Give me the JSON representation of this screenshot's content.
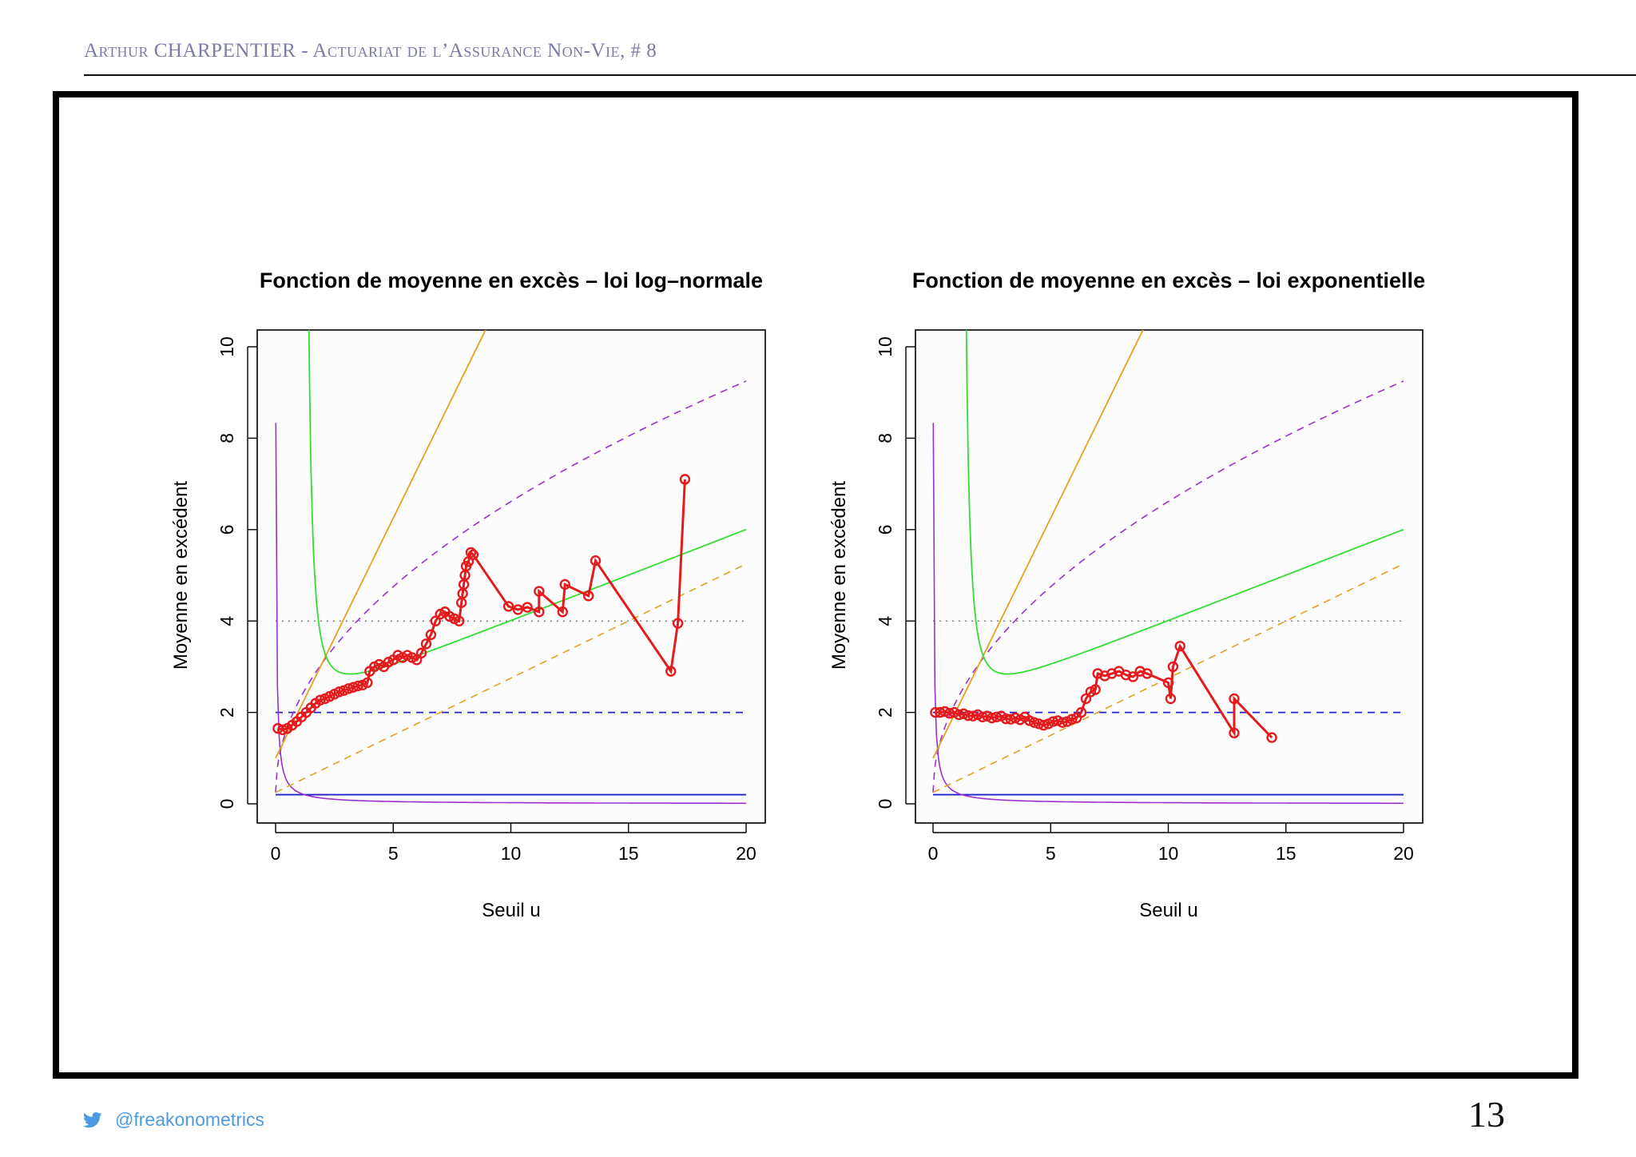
{
  "header": {
    "title": "Arthur CHARPENTIER - Actuariat de l’Assurance Non-Vie, # 8"
  },
  "footer": {
    "twitter_handle": "@freakonometrics",
    "page_number": "13"
  },
  "colors": {
    "series_red": "#e41a1c",
    "green": "#33dd33",
    "orange": "#e6a020",
    "purple": "#9b30d0",
    "blue": "#2020cc",
    "gray_dotted": "#888888"
  },
  "chart_data": [
    {
      "type": "line",
      "title": "Fonction de moyenne en excès – loi log–normale",
      "xlabel": "Seuil u",
      "ylabel": "Moyenne en excédent",
      "xlim": [
        0,
        20
      ],
      "ylim": [
        0,
        10
      ],
      "xticks": [
        "0",
        "5",
        "10",
        "15",
        "20"
      ],
      "yticks": [
        "0",
        "2",
        "4",
        "6",
        "8",
        "10"
      ],
      "empirical": {
        "name": "empirical mean excess",
        "x": [
          0.1,
          0.3,
          0.5,
          0.7,
          0.9,
          1.1,
          1.3,
          1.5,
          1.7,
          1.9,
          2.1,
          2.3,
          2.5,
          2.7,
          2.9,
          3.1,
          3.3,
          3.5,
          3.7,
          3.9,
          4.0,
          4.2,
          4.4,
          4.6,
          4.8,
          5.0,
          5.2,
          5.4,
          5.6,
          5.8,
          6.0,
          6.2,
          6.4,
          6.6,
          6.8,
          7.0,
          7.2,
          7.4,
          7.6,
          7.8,
          7.9,
          7.95,
          8.0,
          8.05,
          8.1,
          8.2,
          8.3,
          8.4,
          9.9,
          10.3,
          10.7,
          11.2,
          11.2,
          12.2,
          12.3,
          13.3,
          13.6,
          16.8,
          17.1,
          17.4
        ],
        "y": [
          1.65,
          1.62,
          1.65,
          1.72,
          1.8,
          1.9,
          2.0,
          2.1,
          2.2,
          2.27,
          2.3,
          2.35,
          2.4,
          2.45,
          2.48,
          2.52,
          2.55,
          2.58,
          2.6,
          2.65,
          2.9,
          3.0,
          3.05,
          3.0,
          3.1,
          3.15,
          3.25,
          3.2,
          3.25,
          3.2,
          3.15,
          3.3,
          3.5,
          3.7,
          4.0,
          4.15,
          4.2,
          4.1,
          4.05,
          4.0,
          4.4,
          4.6,
          4.8,
          5.0,
          5.2,
          5.3,
          5.5,
          5.45,
          4.32,
          4.25,
          4.3,
          4.2,
          4.65,
          4.2,
          4.8,
          4.55,
          5.32,
          2.9,
          3.95,
          7.1
        ]
      },
      "reference_curves": [
        {
          "name": "hline 2 dashed blue",
          "value": 2
        },
        {
          "name": "hline 4 dotted gray",
          "value": 4
        },
        {
          "name": "hline 0.2 solid blue",
          "value": 0.2
        }
      ]
    },
    {
      "type": "line",
      "title": "Fonction de moyenne en excès – loi exponentielle",
      "xlabel": "Seuil u",
      "ylabel": "Moyenne en excédent",
      "xlim": [
        0,
        20
      ],
      "ylim": [
        0,
        10
      ],
      "xticks": [
        "0",
        "5",
        "10",
        "15",
        "20"
      ],
      "yticks": [
        "0",
        "2",
        "4",
        "6",
        "8",
        "10"
      ],
      "empirical": {
        "name": "empirical mean excess",
        "x": [
          0.1,
          0.3,
          0.5,
          0.7,
          0.9,
          1.1,
          1.3,
          1.5,
          1.7,
          1.9,
          2.1,
          2.3,
          2.5,
          2.7,
          2.9,
          3.1,
          3.3,
          3.5,
          3.7,
          3.9,
          4.1,
          4.3,
          4.5,
          4.7,
          4.9,
          5.1,
          5.3,
          5.5,
          5.7,
          5.9,
          6.1,
          6.3,
          6.5,
          6.7,
          6.9,
          7.0,
          7.3,
          7.6,
          7.9,
          8.2,
          8.5,
          8.8,
          9.1,
          10.0,
          10.1,
          10.2,
          10.5,
          12.8,
          12.8,
          14.4
        ],
        "y": [
          2.0,
          2.0,
          2.02,
          1.98,
          2.0,
          1.95,
          1.97,
          1.93,
          1.92,
          1.95,
          1.9,
          1.92,
          1.88,
          1.9,
          1.92,
          1.86,
          1.85,
          1.88,
          1.84,
          1.9,
          1.82,
          1.78,
          1.75,
          1.72,
          1.75,
          1.8,
          1.82,
          1.78,
          1.8,
          1.85,
          1.88,
          2.0,
          2.3,
          2.45,
          2.5,
          2.85,
          2.8,
          2.85,
          2.9,
          2.82,
          2.78,
          2.9,
          2.85,
          2.65,
          2.3,
          3.0,
          3.45,
          1.55,
          2.3,
          1.45
        ]
      },
      "reference_curves": [
        {
          "name": "hline 2 dashed blue",
          "value": 2
        },
        {
          "name": "hline 4 dotted gray",
          "value": 4
        },
        {
          "name": "hline 0.2 solid blue",
          "value": 0.2
        }
      ]
    }
  ]
}
